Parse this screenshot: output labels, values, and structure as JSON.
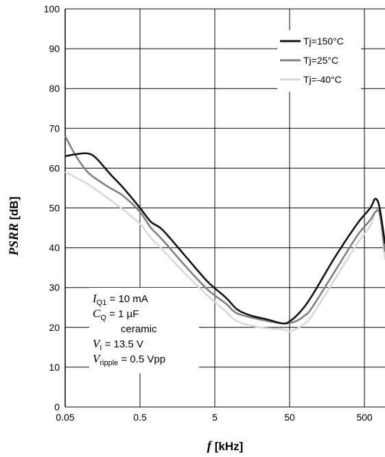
{
  "chart_data": {
    "type": "line",
    "xlabel": {
      "symbol": "f",
      "unit": "[kHz]"
    },
    "ylabel": {
      "symbol": "PSRR",
      "unit": "[dB]"
    },
    "xscale": "log",
    "xlim": [
      0.05,
      1000
    ],
    "ylim": [
      0,
      100
    ],
    "x_ticks": [
      "0.05",
      "0.5",
      "5",
      "50",
      "500"
    ],
    "x_tick_values": [
      0.05,
      0.5,
      5,
      50,
      500
    ],
    "y_ticks": [
      "0",
      "10",
      "20",
      "30",
      "40",
      "50",
      "60",
      "70",
      "80",
      "90",
      "100"
    ],
    "y_tick_values": [
      0,
      10,
      20,
      30,
      40,
      50,
      60,
      70,
      80,
      90,
      100
    ],
    "grid": true,
    "legend_position": "top-right",
    "series": [
      {
        "name": "Tj=150°C",
        "color": "#111111",
        "x": [
          0.05,
          0.07,
          0.1,
          0.13,
          0.2,
          0.3,
          0.5,
          0.7,
          1,
          2,
          4,
          7,
          10,
          15,
          25,
          40,
          50,
          70,
          100,
          200,
          400,
          600,
          700,
          800,
          1000
        ],
        "y": [
          63,
          63.5,
          63.7,
          62.5,
          58.5,
          55,
          50,
          46.5,
          44.5,
          38,
          31.5,
          27.5,
          24.5,
          23,
          22,
          21,
          21.5,
          24,
          28,
          37.5,
          46,
          50,
          52.3,
          50,
          41
        ]
      },
      {
        "name": "Tj=25°C",
        "color": "#7f7f7f",
        "x": [
          0.05,
          0.07,
          0.1,
          0.15,
          0.2,
          0.3,
          0.5,
          0.7,
          1,
          2,
          4,
          7,
          10,
          20,
          40,
          60,
          80,
          100,
          200,
          400,
          600,
          700,
          800,
          1000
        ],
        "y": [
          68,
          63,
          59,
          56.5,
          55,
          53,
          49,
          45,
          42,
          35.5,
          29.5,
          26,
          23.5,
          22,
          21,
          21.5,
          23,
          25,
          34,
          43,
          47,
          49,
          48.5,
          39
        ]
      },
      {
        "name": "Tj=-40°C",
        "color": "#d9d9d9",
        "x": [
          0.05,
          0.1,
          0.2,
          0.3,
          0.5,
          0.7,
          1,
          2,
          4,
          7,
          10,
          20,
          40,
          50,
          60,
          80,
          100,
          200,
          400,
          600,
          700,
          800,
          1000
        ],
        "y": [
          59,
          56,
          52,
          49.5,
          46,
          42.5,
          39.5,
          33.5,
          28,
          24,
          21.5,
          20,
          19.5,
          19,
          19.5,
          21,
          23,
          32,
          41,
          45.5,
          49,
          48.5,
          37
        ]
      }
    ],
    "annotation": {
      "lines": [
        {
          "sym": "I",
          "sub": "Q1",
          "text": " = 10 mA"
        },
        {
          "sym": "C",
          "sub": "Q",
          "text": " = 1 µF"
        },
        {
          "sym": "",
          "sub": "",
          "text": "ceramic"
        },
        {
          "sym": "V",
          "sub": "I",
          "text": " = 13.5 V"
        },
        {
          "sym": "V",
          "sub": "ripple",
          "text": " = 0.5 Vpp"
        }
      ]
    }
  }
}
